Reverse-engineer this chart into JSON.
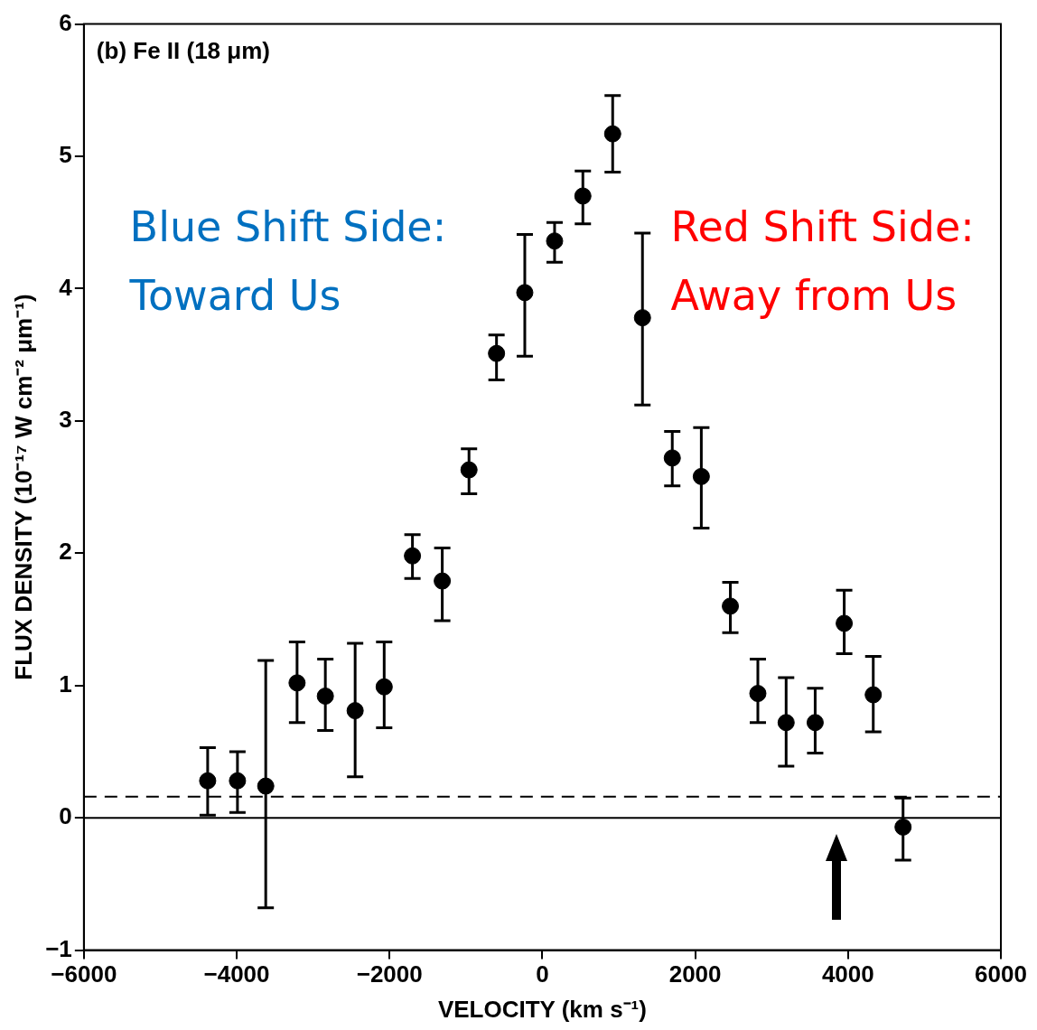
{
  "chart_data": {
    "type": "scatter",
    "title": "(b) Fe II (18 μm)",
    "xlabel": "VELOCITY (km s⁻¹)",
    "ylabel": "FLUX DENSITY (10⁻¹⁷ W cm⁻² μm⁻¹)",
    "x": [
      -4380,
      -3990,
      -3620,
      -3210,
      -2840,
      -2450,
      -2070,
      -1700,
      -1310,
      -960,
      -600,
      -230,
      160,
      530,
      920,
      1310,
      1700,
      2080,
      2460,
      2820,
      3190,
      3570,
      3950,
      4330,
      4720
    ],
    "series": [
      {
        "color": "#000000",
        "values": [
          0.28,
          0.28,
          0.24,
          1.02,
          0.92,
          0.81,
          0.99,
          1.98,
          1.79,
          2.63,
          3.51,
          3.97,
          4.36,
          4.7,
          5.17,
          3.78,
          2.72,
          2.58,
          1.6,
          0.94,
          0.72,
          0.72,
          1.47,
          0.93,
          -0.07
        ],
        "errors": [
          [
            0.02,
            0.53
          ],
          [
            0.04,
            0.5
          ],
          [
            -0.68,
            1.19
          ],
          [
            0.72,
            1.33
          ],
          [
            0.66,
            1.2
          ],
          [
            0.31,
            1.32
          ],
          [
            0.68,
            1.33
          ],
          [
            1.81,
            2.14
          ],
          [
            1.49,
            2.04
          ],
          [
            2.45,
            2.79
          ],
          [
            3.31,
            3.65
          ],
          [
            3.49,
            4.41
          ],
          [
            4.2,
            4.5
          ],
          [
            4.49,
            4.89
          ],
          [
            4.88,
            5.46
          ],
          [
            3.12,
            4.42
          ],
          [
            2.51,
            2.92
          ],
          [
            2.19,
            2.95
          ],
          [
            1.4,
            1.78
          ],
          [
            0.72,
            1.2
          ],
          [
            0.39,
            1.06
          ],
          [
            0.49,
            0.98
          ],
          [
            1.24,
            1.72
          ],
          [
            0.65,
            1.22
          ],
          [
            -0.32,
            0.15
          ]
        ]
      }
    ],
    "xlim": [
      -6000,
      6000
    ],
    "xticks": [
      {
        "value": -6000,
        "label": "−6000"
      },
      {
        "value": -4000,
        "label": "−4000"
      },
      {
        "value": -2000,
        "label": "−2000"
      },
      0,
      2000,
      4000,
      6000
    ],
    "ylim": [
      -1,
      6
    ],
    "yticks": [
      {
        "value": -1,
        "label": "−1"
      },
      0,
      1,
      2,
      3,
      4,
      5,
      6
    ],
    "ref_lines": [
      {
        "axis": "y",
        "value": 0,
        "color": "#000000",
        "line_style": "solid"
      },
      {
        "axis": "y",
        "value": 0.16,
        "color": "#000000",
        "line_style": "dashed"
      }
    ],
    "annotations": [
      "Blue Shift Side:\nToward Us",
      "Red Shift Side:\nAway from Us"
    ],
    "marker": "circle",
    "grid": false,
    "legend": false
  }
}
